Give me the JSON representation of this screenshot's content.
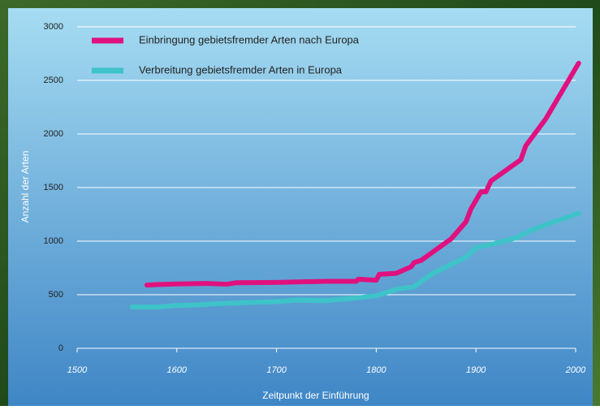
{
  "chart_data": {
    "type": "line",
    "xlabel": "Zeitpunkt der Einführung",
    "ylabel": "Anzahl der Arten",
    "xlim": [
      1500,
      2000
    ],
    "xticks": [
      1500,
      1600,
      1700,
      1800,
      1900,
      2000
    ],
    "ylim": [
      0,
      3000
    ],
    "yticks": [
      0,
      500,
      1000,
      1500,
      2000,
      2500,
      3000
    ],
    "grid": true,
    "legend": "upper left",
    "series": [
      {
        "name": "Einbringung gebietsfremder Arten nach Europa",
        "color": "#e0117f",
        "x": [
          1570,
          1580,
          1600,
          1630,
          1650,
          1660,
          1700,
          1750,
          1780,
          1782,
          1790,
          1800,
          1803,
          1820,
          1835,
          1838,
          1845,
          1875,
          1890,
          1895,
          1905,
          1910,
          1915,
          1945,
          1950,
          1970,
          2003
        ],
        "values": [
          590,
          595,
          600,
          605,
          598,
          612,
          615,
          625,
          625,
          645,
          640,
          635,
          690,
          700,
          760,
          800,
          820,
          1020,
          1180,
          1300,
          1460,
          1460,
          1560,
          1760,
          1890,
          2140,
          2660
        ]
      },
      {
        "name": "Verbreitung gebietsfremder Arten in Europa",
        "color": "#3ec3c8",
        "x": [
          1555,
          1580,
          1600,
          1620,
          1650,
          1680,
          1700,
          1720,
          1750,
          1780,
          1800,
          1820,
          1830,
          1837,
          1855,
          1870,
          1890,
          1900,
          1920,
          1940,
          1955,
          1975,
          2003
        ],
        "values": [
          385,
          385,
          400,
          405,
          420,
          430,
          435,
          450,
          445,
          470,
          490,
          550,
          565,
          570,
          690,
          760,
          850,
          940,
          980,
          1030,
          1100,
          1170,
          1260
        ]
      }
    ]
  }
}
